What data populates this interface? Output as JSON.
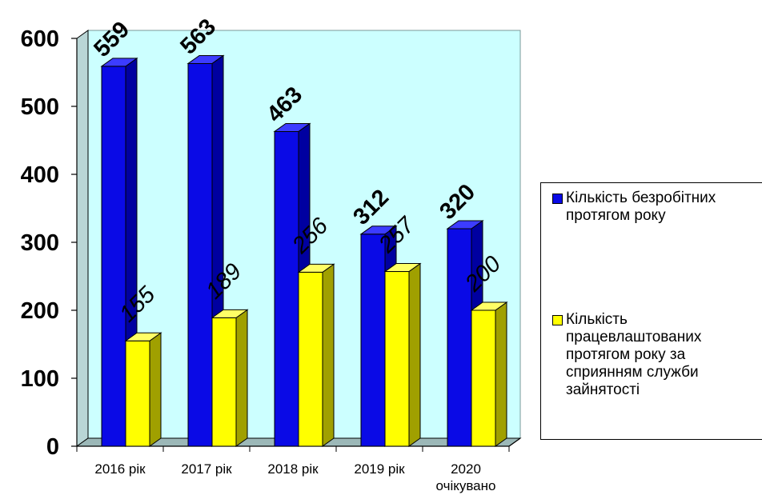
{
  "chart_data": {
    "type": "bar",
    "categories": [
      "2016 рік",
      "2017 рік",
      "2018 рік",
      "2019 рік",
      "2020 очікувано"
    ],
    "category_lines": [
      [
        "2016 рік"
      ],
      [
        "2017 рік"
      ],
      [
        "2018 рік"
      ],
      [
        "2019 рік"
      ],
      [
        "2020",
        "очікувано"
      ]
    ],
    "series": [
      {
        "name": "Кількість безробітних протягом року",
        "values": [
          559,
          563,
          463,
          312,
          320
        ],
        "color": "#0a0ae6",
        "side_color": "#0000a0",
        "top_color": "#3c3cff"
      },
      {
        "name": "Кількість працевлаштованих протягом року за сприянням служби зайнятості",
        "values": [
          155,
          189,
          256,
          257,
          200
        ],
        "color": "#ffff00",
        "side_color": "#a0a000",
        "top_color": "#ffff66"
      }
    ],
    "ylim": [
      0,
      600
    ],
    "yticks": [
      "0",
      "100",
      "200",
      "300",
      "400",
      "500",
      "600"
    ],
    "grid": false,
    "legend_position": "right",
    "plot_background": "#ccffff",
    "wall_color": "#b9d6d6",
    "floor_color": "#9cb8b8"
  },
  "legend": {
    "item1": "Кількість безробітних\nпротягом року",
    "item2": "Кількість\nпрацевлаштованих\nпротягом року за\nсприянням служби\nзайнятості"
  }
}
